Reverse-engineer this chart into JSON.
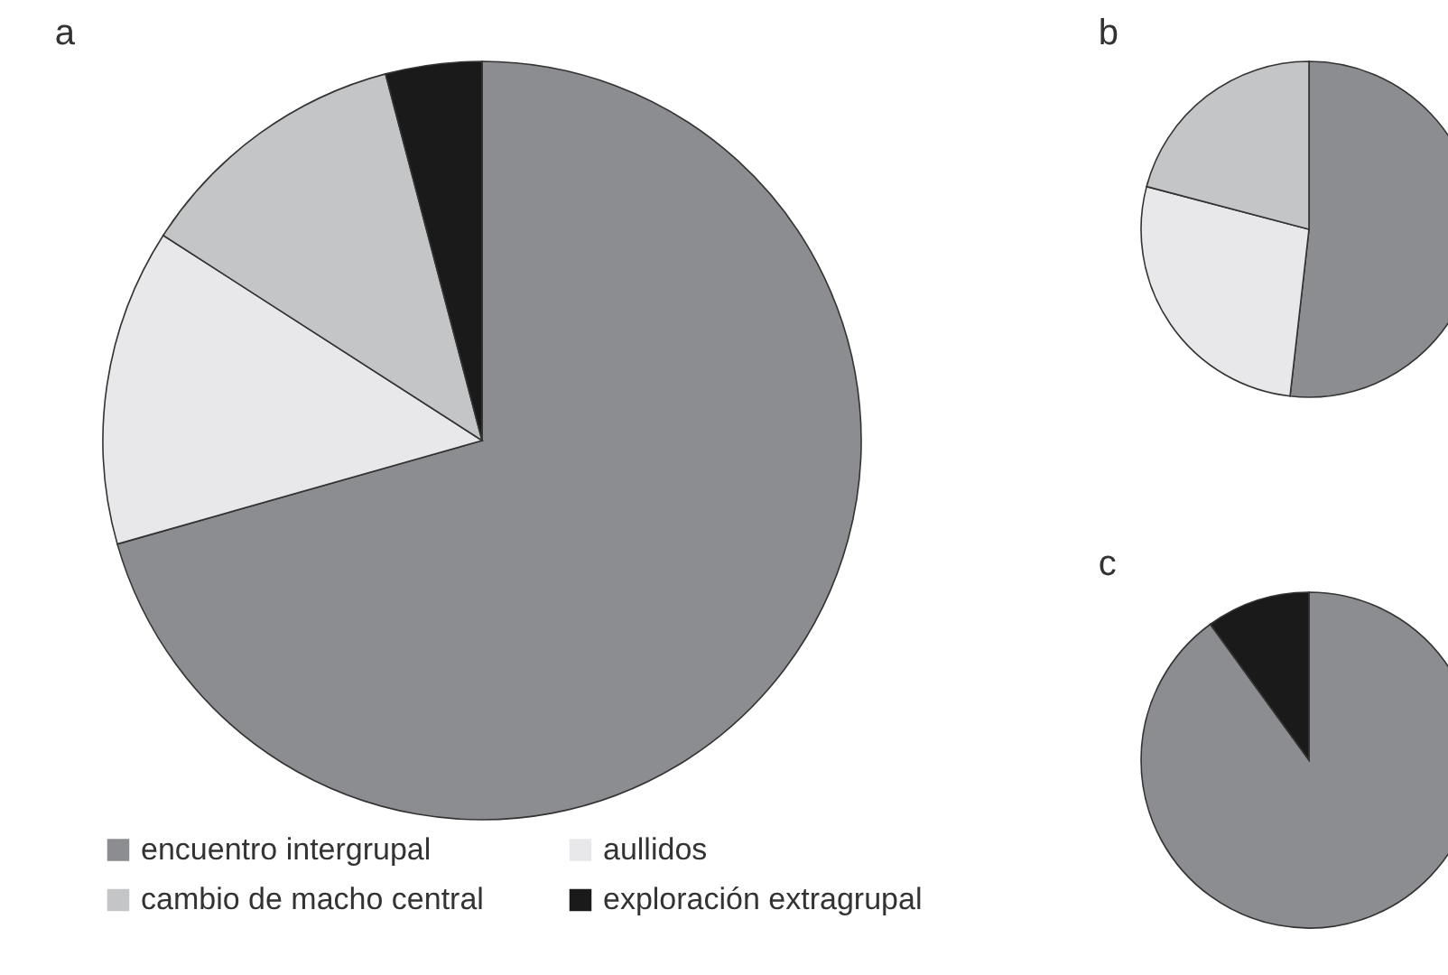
{
  "chart_data": [
    {
      "type": "pie",
      "title": "a",
      "categories": [
        "encuentro intergrupal",
        "aullidos",
        "cambio de macho central",
        "exploración extragrupal"
      ],
      "values": [
        70.6,
        13.5,
        11.8,
        4.1
      ],
      "colors": [
        "#8c8d90",
        "#e8e8ea",
        "#c4c5c7",
        "#1a1a1a"
      ],
      "legend": "bottom"
    },
    {
      "type": "pie",
      "title": "b",
      "categories": [
        null,
        null,
        null
      ],
      "values": [
        51.8,
        27.3,
        20.9
      ],
      "colors": [
        "#8c8d90",
        "#e8e8ea",
        "#c4c5c7"
      ],
      "legend": false
    },
    {
      "type": "pie",
      "title": "c",
      "categories": [
        null,
        null
      ],
      "values": [
        90,
        10
      ],
      "colors": [
        "#8c8d90",
        "#1a1a1a"
      ],
      "legend": false
    }
  ]
}
